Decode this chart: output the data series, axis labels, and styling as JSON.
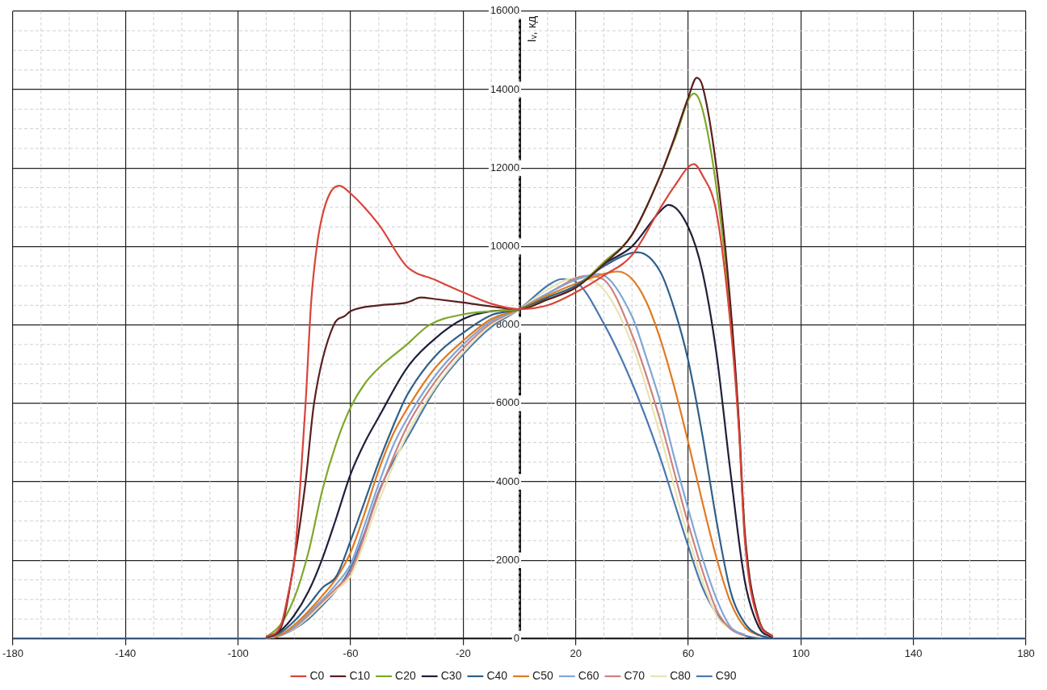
{
  "chart_data": {
    "type": "line",
    "ylabel": "Iᵥ, кд",
    "xlim": [
      -180,
      180
    ],
    "xticks": [
      -180,
      -140,
      -100,
      -60,
      -20,
      20,
      60,
      100,
      140,
      180
    ],
    "ylim": [
      0,
      16000
    ],
    "yticks": [
      0,
      2000,
      4000,
      6000,
      8000,
      10000,
      12000,
      14000,
      16000
    ],
    "grid": true,
    "legend": "bottom",
    "marker": "none",
    "line_style": "solid",
    "series": [
      {
        "name": "C0",
        "color": "#d9443a",
        "x": [
          -90,
          -85,
          -82,
          -80,
          -78,
          -76,
          -74,
          -72,
          -70,
          -67,
          -64,
          -60,
          -50,
          -40,
          -30,
          -20,
          -10,
          0,
          10,
          20,
          30,
          40,
          50,
          55,
          62,
          65,
          70,
          75,
          78,
          80,
          85,
          90
        ],
        "values": [
          50,
          300,
          1200,
          2000,
          3800,
          6000,
          8600,
          10000,
          10800,
          11400,
          11550,
          11350,
          10560,
          9490,
          9150,
          8830,
          8540,
          8400,
          8500,
          8830,
          9260,
          9780,
          10970,
          11530,
          12100,
          11820,
          10870,
          8000,
          5300,
          2600,
          450,
          50
        ]
      },
      {
        "name": "C10",
        "color": "#5a1f1f",
        "x": [
          -90,
          -85,
          -80,
          -76,
          -73,
          -66,
          -62,
          -60,
          -50,
          -40,
          -35,
          -30,
          -20,
          -10,
          0,
          10,
          20,
          30,
          40,
          50,
          55,
          60,
          63,
          65,
          70,
          75,
          78,
          80,
          85,
          90
        ],
        "values": [
          50,
          250,
          2000,
          4000,
          6000,
          8000,
          8230,
          8350,
          8500,
          8570,
          8700,
          8660,
          8570,
          8470,
          8400,
          8650,
          8950,
          9550,
          10300,
          11800,
          12760,
          13800,
          14300,
          14100,
          12000,
          8500,
          5500,
          2800,
          500,
          50
        ]
      },
      {
        "name": "C20",
        "color": "#7ea82a",
        "x": [
          -90,
          -85,
          -80,
          -75,
          -70,
          -65,
          -60,
          -55,
          -50,
          -40,
          -32,
          -20,
          -10,
          0,
          10,
          20,
          30,
          40,
          50,
          55,
          62,
          65,
          70,
          75,
          78,
          80,
          85,
          90
        ],
        "values": [
          40,
          350,
          1040,
          2200,
          3800,
          5000,
          5900,
          6500,
          6900,
          7500,
          8000,
          8270,
          8350,
          8400,
          8650,
          8950,
          9600,
          10300,
          11800,
          12700,
          13900,
          13500,
          11500,
          8300,
          5400,
          2700,
          500,
          50
        ]
      },
      {
        "name": "C30",
        "color": "#1f1f3a",
        "x": [
          -90,
          -85,
          -80,
          -75,
          -70,
          -65,
          -60,
          -55,
          -50,
          -40,
          -30,
          -20,
          -10,
          0,
          10,
          20,
          30,
          40,
          50,
          53,
          60,
          65,
          70,
          75,
          80,
          85,
          90
        ],
        "values": [
          30,
          200,
          600,
          1200,
          2050,
          3100,
          4200,
          5000,
          5650,
          6900,
          7650,
          8150,
          8350,
          8400,
          8650,
          8950,
          9550,
          10000,
          10900,
          11060,
          10490,
          9360,
          7270,
          4240,
          1500,
          300,
          30
        ]
      },
      {
        "name": "C40",
        "color": "#2f5f8a",
        "x": [
          -90,
          -85,
          -80,
          -75,
          -70,
          -65,
          -60,
          -55,
          -50,
          -45,
          -40,
          -30,
          -20,
          -10,
          0,
          10,
          20,
          30,
          42,
          50,
          55,
          60,
          65,
          70,
          75,
          80,
          85,
          90
        ],
        "values": [
          20,
          150,
          450,
          850,
          1300,
          1600,
          2500,
          3500,
          4500,
          5400,
          6200,
          7200,
          7800,
          8250,
          8400,
          8700,
          9000,
          9500,
          9850,
          9360,
          8410,
          7080,
          5190,
          3010,
          1210,
          400,
          100,
          10
        ]
      },
      {
        "name": "C50",
        "color": "#e07b20",
        "x": [
          -90,
          -85,
          -80,
          -75,
          -70,
          -65,
          -60,
          -55,
          -50,
          -45,
          -40,
          -30,
          -20,
          -10,
          0,
          10,
          20,
          30,
          35,
          40,
          45,
          50,
          55,
          60,
          65,
          70,
          75,
          80,
          85
        ],
        "values": [
          20,
          100,
          350,
          700,
          1100,
          1550,
          2200,
          3200,
          4300,
          5200,
          5850,
          6900,
          7600,
          8150,
          8400,
          8750,
          9050,
          9300,
          9360,
          9170,
          8600,
          7650,
          6420,
          5000,
          3480,
          2060,
          930,
          300,
          80
        ]
      },
      {
        "name": "C60",
        "color": "#7fa7d6",
        "x": [
          -90,
          -85,
          -80,
          -75,
          -70,
          -65,
          -60,
          -55,
          -50,
          -45,
          -40,
          -30,
          -20,
          -10,
          0,
          10,
          20,
          28,
          40,
          45,
          50,
          55,
          60,
          65,
          70,
          75,
          80
        ],
        "values": [
          10,
          90,
          300,
          650,
          1000,
          1400,
          1900,
          2900,
          3950,
          4900,
          5600,
          6700,
          7500,
          8100,
          8400,
          8800,
          9150,
          9300,
          8220,
          7180,
          6040,
          4620,
          3300,
          2060,
          1020,
          300,
          100
        ]
      },
      {
        "name": "C70",
        "color": "#d08080",
        "x": [
          -90,
          -85,
          -80,
          -75,
          -70,
          -65,
          -60,
          -50,
          -40,
          -30,
          -20,
          -10,
          0,
          10,
          24,
          30,
          40,
          50,
          60,
          70,
          75,
          80
        ],
        "values": [
          10,
          80,
          280,
          600,
          950,
          1300,
          1700,
          3700,
          5400,
          6550,
          7400,
          8050,
          8400,
          8800,
          9250,
          9150,
          7750,
          5570,
          2920,
          740,
          250,
          80
        ]
      },
      {
        "name": "C80",
        "color": "#e8e4b0",
        "x": [
          -90,
          -85,
          -80,
          -75,
          -70,
          -65,
          -60,
          -50,
          -40,
          -30,
          -20,
          -10,
          0,
          10,
          20,
          30,
          40,
          50,
          60,
          70,
          75,
          80
        ],
        "values": [
          10,
          80,
          260,
          550,
          900,
          1250,
          1600,
          3500,
          5200,
          6400,
          7300,
          8000,
          8400,
          8900,
          9200,
          8900,
          7500,
          5200,
          2600,
          600,
          250,
          80
        ]
      },
      {
        "name": "C90",
        "color": "#4a78b0",
        "x": [
          -180,
          -100,
          -90,
          -85,
          -80,
          -75,
          -70,
          -65,
          -60,
          -55,
          -50,
          -45,
          -40,
          -30,
          -20,
          -10,
          0,
          10,
          15,
          20,
          30,
          40,
          50,
          55,
          60,
          65,
          70,
          75,
          80,
          90,
          100,
          180
        ],
        "values": [
          0,
          0,
          10,
          80,
          250,
          500,
          850,
          1250,
          1800,
          2700,
          3750,
          4500,
          5100,
          6350,
          7250,
          7950,
          8400,
          9000,
          9170,
          9100,
          8030,
          6520,
          4620,
          3480,
          2350,
          1310,
          640,
          250,
          80,
          0,
          0,
          0
        ]
      }
    ]
  }
}
